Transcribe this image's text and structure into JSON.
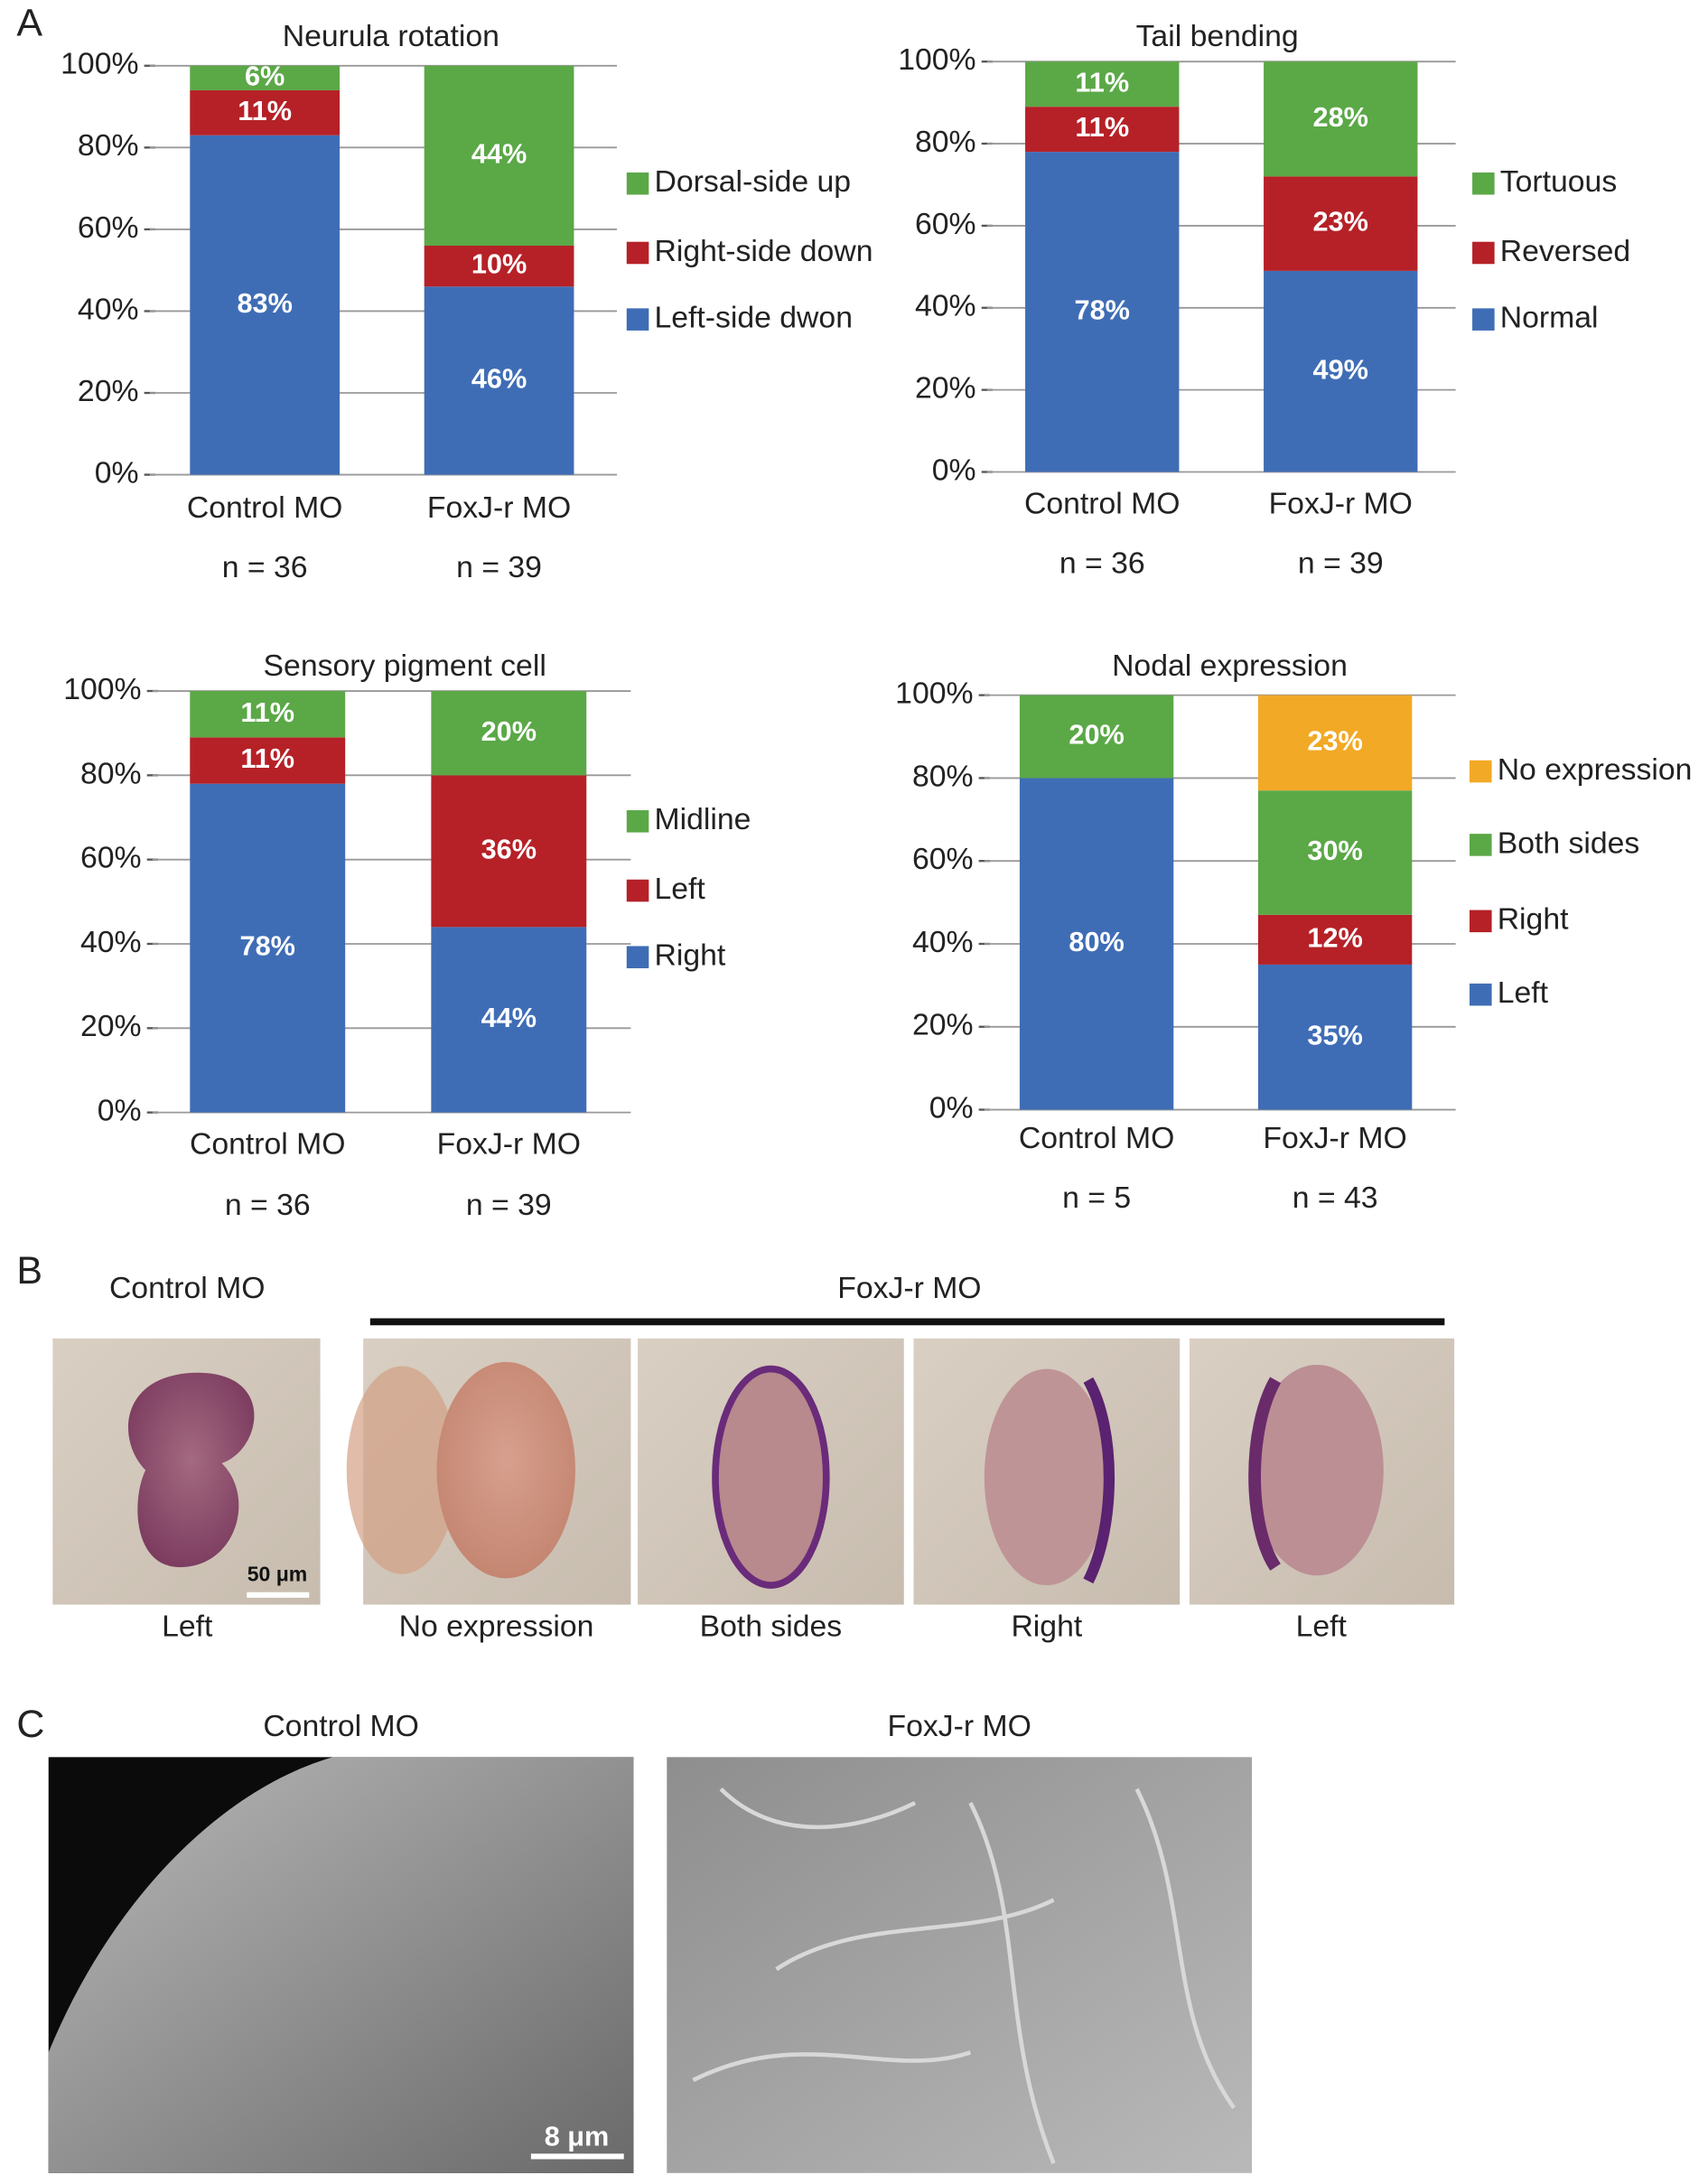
{
  "panel_labels": [
    "A",
    "B",
    "C"
  ],
  "chart_data": [
    {
      "type": "bar",
      "stacked": true,
      "title": "Neurula rotation",
      "categories": [
        "Control MO",
        "FoxJ-r MO"
      ],
      "n_labels": [
        "n = 36",
        "n = 39"
      ],
      "series": [
        {
          "name": "Left-side dwon",
          "color": "#3f6db5",
          "values": [
            83,
            46
          ],
          "value_labels": [
            "83%",
            "46%"
          ]
        },
        {
          "name": "Right-side down",
          "color": "#b52127",
          "values": [
            11,
            10
          ],
          "value_labels": [
            "11%",
            "10%"
          ]
        },
        {
          "name": "Dorsal-side up",
          "color": "#5ba847",
          "values": [
            6,
            44
          ],
          "value_labels": [
            "6%",
            "44%"
          ]
        }
      ],
      "ylim": [
        0,
        100
      ],
      "yticks": [
        {
          "value": 0,
          "label": "0%"
        },
        {
          "value": 20,
          "label": "20%"
        },
        {
          "value": 40,
          "label": "40%"
        },
        {
          "value": 60,
          "label": "60%"
        },
        {
          "value": 80,
          "label": "80%"
        },
        {
          "value": 100,
          "label": "100%"
        }
      ],
      "grid": true
    },
    {
      "type": "bar",
      "stacked": true,
      "title": "Tail bending",
      "categories": [
        "Control MO",
        "FoxJ-r MO"
      ],
      "n_labels": [
        "n = 36",
        "n = 39"
      ],
      "series": [
        {
          "name": "Normal",
          "color": "#3f6db5",
          "values": [
            78,
            49
          ],
          "value_labels": [
            "78%",
            "49%"
          ]
        },
        {
          "name": "Reversed",
          "color": "#b52127",
          "values": [
            11,
            23
          ],
          "value_labels": [
            "11%",
            "23%"
          ]
        },
        {
          "name": "Tortuous",
          "color": "#5ba847",
          "values": [
            11,
            28
          ],
          "value_labels": [
            "11%",
            "28%"
          ]
        }
      ],
      "ylim": [
        0,
        100
      ],
      "yticks": [
        {
          "value": 0,
          "label": "0%"
        },
        {
          "value": 20,
          "label": "20%"
        },
        {
          "value": 40,
          "label": "40%"
        },
        {
          "value": 60,
          "label": "60%"
        },
        {
          "value": 80,
          "label": "80%"
        },
        {
          "value": 100,
          "label": "100%"
        }
      ],
      "grid": true
    },
    {
      "type": "bar",
      "stacked": true,
      "title": "Sensory pigment cell",
      "categories": [
        "Control MO",
        "FoxJ-r MO"
      ],
      "n_labels": [
        "n = 36",
        "n = 39"
      ],
      "series": [
        {
          "name": "Right",
          "color": "#3f6db5",
          "values": [
            78,
            44
          ],
          "value_labels": [
            "78%",
            "44%"
          ]
        },
        {
          "name": "Left",
          "color": "#b52127",
          "values": [
            11,
            36
          ],
          "value_labels": [
            "11%",
            "36%"
          ]
        },
        {
          "name": "Midline",
          "color": "#5ba847",
          "values": [
            11,
            20
          ],
          "value_labels": [
            "11%",
            "20%"
          ]
        }
      ],
      "ylim": [
        0,
        100
      ],
      "yticks": [
        {
          "value": 0,
          "label": "0%"
        },
        {
          "value": 20,
          "label": "20%"
        },
        {
          "value": 40,
          "label": "40%"
        },
        {
          "value": 60,
          "label": "60%"
        },
        {
          "value": 80,
          "label": "80%"
        },
        {
          "value": 100,
          "label": "100%"
        }
      ],
      "grid": true
    },
    {
      "type": "bar",
      "stacked": true,
      "title": "Nodal expression",
      "categories": [
        "Control MO",
        "FoxJ-r MO"
      ],
      "n_labels": [
        "n = 5",
        "n = 43"
      ],
      "series": [
        {
          "name": "Left",
          "color": "#3f6db5",
          "values": [
            80,
            35
          ],
          "value_labels": [
            "80%",
            "35%"
          ]
        },
        {
          "name": "Right",
          "color": "#b52127",
          "values": [
            null,
            12
          ],
          "value_labels": [
            null,
            "12%"
          ]
        },
        {
          "name": "Both sides",
          "color": "#5ba847",
          "values": [
            20,
            30
          ],
          "value_labels": [
            "20%",
            "30%"
          ]
        },
        {
          "name": "No expression",
          "color": "#f2a925",
          "values": [
            null,
            23
          ],
          "value_labels": [
            null,
            "23%"
          ]
        }
      ],
      "ylim": [
        0,
        100
      ],
      "yticks": [
        {
          "value": 0,
          "label": "0%"
        },
        {
          "value": 20,
          "label": "20%"
        },
        {
          "value": 40,
          "label": "40%"
        },
        {
          "value": 60,
          "label": "60%"
        },
        {
          "value": 80,
          "label": "80%"
        },
        {
          "value": 100,
          "label": "100%"
        }
      ],
      "grid": true
    }
  ],
  "panel_b": {
    "control_title": "Control MO",
    "foxj_title": "FoxJ-r MO",
    "scale_bar": "50 μm",
    "captions": [
      "Left",
      "No expression",
      "Both sides",
      "Right",
      "Left"
    ]
  },
  "panel_c": {
    "titles": [
      "Control MO",
      "FoxJ-r MO"
    ],
    "scale_bar": "8 μm"
  }
}
